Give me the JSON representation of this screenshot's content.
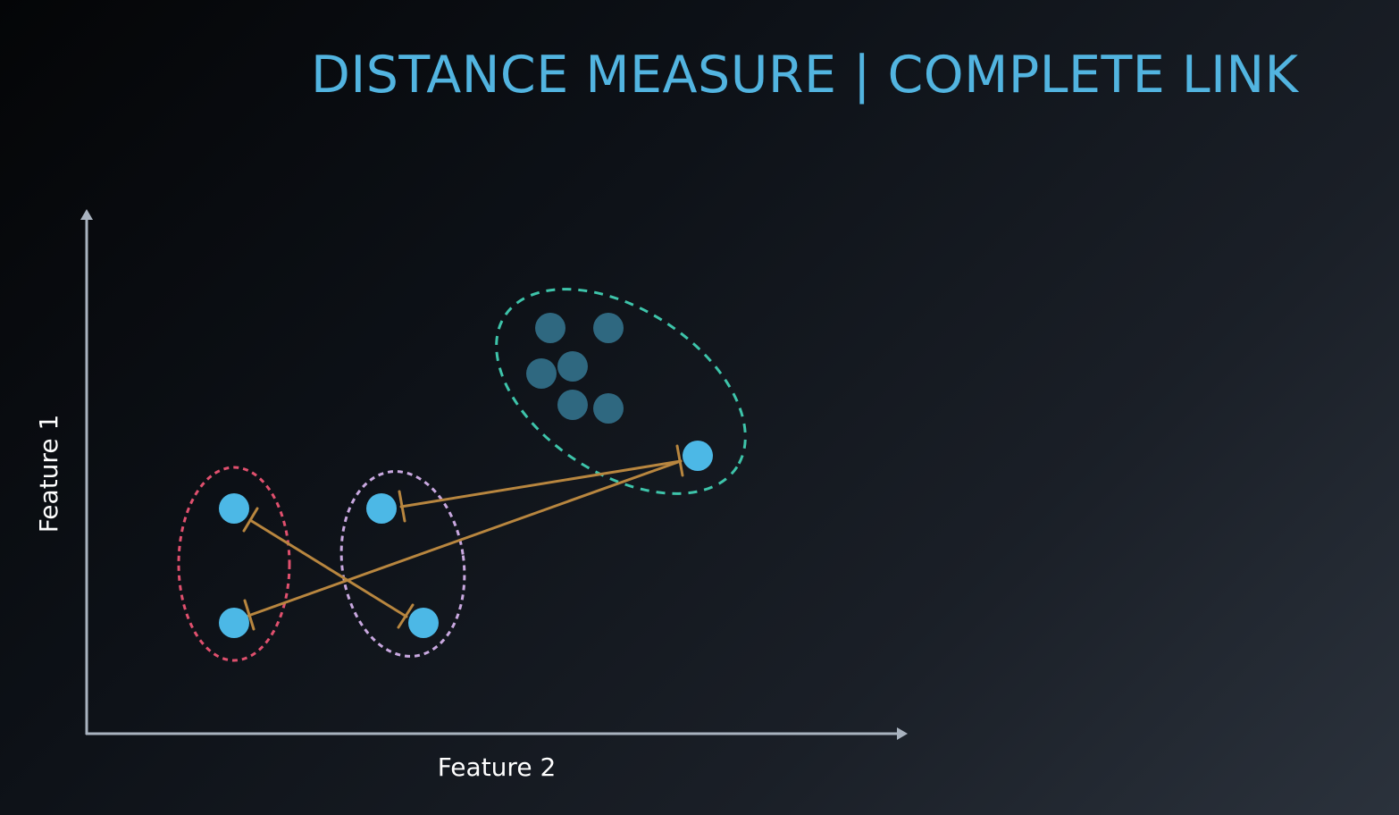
{
  "title": "DISTANCE MEASURE | COMPLETE LINK",
  "axes": {
    "x_label": "Feature 2",
    "y_label": "Feature 1"
  },
  "colors": {
    "title": "#52b4e0",
    "axis": "#a9b3bf",
    "point_highlight": "#4cb8e6",
    "point_cluster": "#2f6880",
    "link_line": "#b8863f",
    "cluster_red": "#e0506e",
    "cluster_purple": "#c9a8e0",
    "cluster_teal": "#3ec4aa"
  },
  "clusters": [
    {
      "id": "red",
      "style": "dashed",
      "color": "#e0506e"
    },
    {
      "id": "purple",
      "style": "dashed",
      "color": "#c9a8e0"
    },
    {
      "id": "teal",
      "style": "dashed",
      "color": "#3ec4aa"
    }
  ],
  "links": [
    {
      "from": "red-top",
      "to": "purple-bottom"
    },
    {
      "from": "red-bottom",
      "to": "teal-highlight"
    },
    {
      "from": "purple-top",
      "to": "teal-highlight"
    }
  ]
}
